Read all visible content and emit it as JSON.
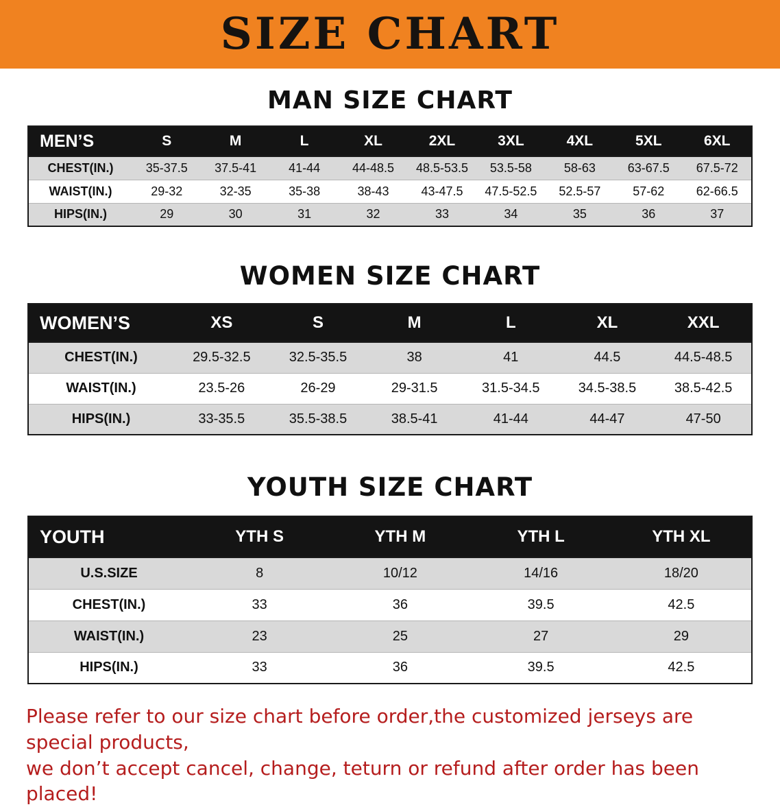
{
  "colors": {
    "banner-bg": "#F08220",
    "header-bg": "#141414",
    "stripe": "#d9d9d9",
    "note-red": "#b51d1d",
    "text": "#111111"
  },
  "banner": {
    "title": "SIZE CHART"
  },
  "sections": [
    {
      "heading": "MAN SIZE CHART",
      "table": {
        "header": [
          "MEN’S",
          "S",
          "M",
          "L",
          "XL",
          "2XL",
          "3XL",
          "4XL",
          "5XL",
          "6XL"
        ],
        "rows": [
          [
            "CHEST(IN.)",
            "35-37.5",
            "37.5-41",
            "41-44",
            "44-48.5",
            "48.5-53.5",
            "53.5-58",
            "58-63",
            "63-67.5",
            "67.5-72"
          ],
          [
            "WAIST(IN.)",
            "29-32",
            "32-35",
            "35-38",
            "38-43",
            "43-47.5",
            "47.5-52.5",
            "52.5-57",
            "57-62",
            "62-66.5"
          ],
          [
            "HIPS(IN.)",
            "29",
            "30",
            "31",
            "32",
            "33",
            "34",
            "35",
            "36",
            "37"
          ]
        ]
      }
    },
    {
      "heading": "WOMEN SIZE CHART",
      "table": {
        "header": [
          "WOMEN’S",
          "XS",
          "S",
          "M",
          "L",
          "XL",
          "XXL"
        ],
        "rows": [
          [
            "CHEST(IN.)",
            "29.5-32.5",
            "32.5-35.5",
            "38",
            "41",
            "44.5",
            "44.5-48.5"
          ],
          [
            "WAIST(IN.)",
            "23.5-26",
            "26-29",
            "29-31.5",
            "31.5-34.5",
            "34.5-38.5",
            "38.5-42.5"
          ],
          [
            "HIPS(IN.)",
            "33-35.5",
            "35.5-38.5",
            "38.5-41",
            "41-44",
            "44-47",
            "47-50"
          ]
        ]
      }
    },
    {
      "heading": "YOUTH SIZE CHART",
      "table": {
        "header": [
          "YOUTH",
          "YTH S",
          "YTH M",
          "YTH L",
          "YTH XL"
        ],
        "rows": [
          [
            "U.S.SIZE",
            "8",
            "10/12",
            "14/16",
            "18/20"
          ],
          [
            "CHEST(IN.)",
            "33",
            "36",
            "39.5",
            "42.5"
          ],
          [
            "WAIST(IN.)",
            "23",
            "25",
            "27",
            "29"
          ],
          [
            "HIPS(IN.)",
            "33",
            "36",
            "39.5",
            "42.5"
          ]
        ]
      }
    }
  ],
  "footer": {
    "line1": "Please refer to our size chart before order,the customized jerseys are special products,",
    "line2": "we don’t accept cancel, change, teturn or refund after order has been placed!"
  }
}
